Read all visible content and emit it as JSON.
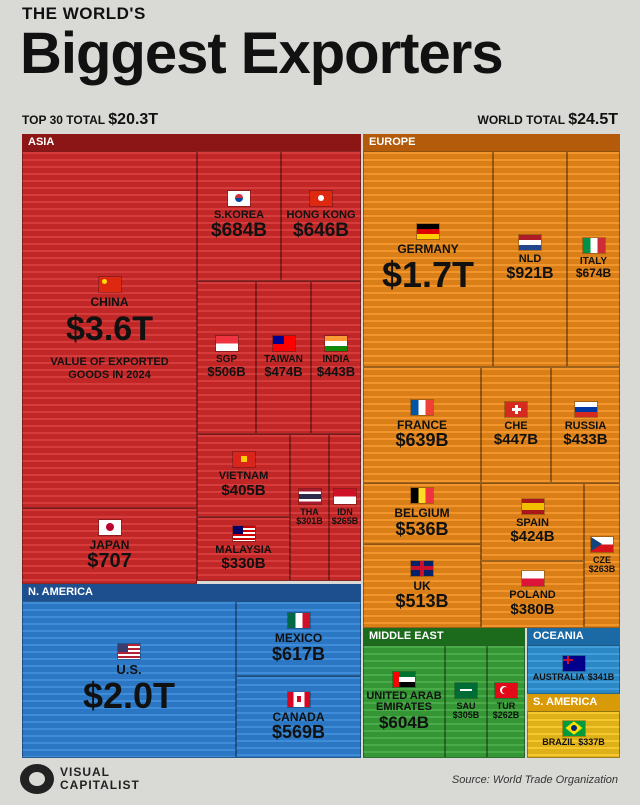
{
  "header": {
    "supertitle": "THE WORLD'S",
    "title": "Biggest Exporters",
    "top30_label": "TOP 30 TOTAL",
    "top30_value": "$20.3T",
    "world_label": "WORLD TOTAL",
    "world_value": "$24.5T"
  },
  "regions": {
    "asia": "ASIA",
    "europe": "EUROPE",
    "namerica": "N. AMERICA",
    "mideast": "MIDDLE EAST",
    "oceania": "OCEANIA",
    "samerica": "S. AMERICA"
  },
  "footer": {
    "logo_line1": "VISUAL",
    "logo_line2": "CAPITALIST",
    "source": "Source: World Trade Organization"
  },
  "colors": {
    "asia": "#d42b2b",
    "europe": "#f08c1a",
    "namerica": "#2f83d6",
    "mideast": "#3aa53a",
    "oceania": "#2f96d8",
    "samerica": "#f5c21c"
  },
  "chart_data": {
    "type": "treemap",
    "title": "THE WORLD'S Biggest Exporters",
    "note": "VALUE OF EXPORTED GOODS IN 2024",
    "unit": "USD",
    "items": [
      {
        "id": "china",
        "region": "asia",
        "name": "CHINA",
        "label": "$3.6T",
        "value": 3600,
        "flag": "china"
      },
      {
        "id": "skorea",
        "region": "asia",
        "name": "S.KOREA",
        "label": "$684B",
        "value": 684,
        "flag": "south-korea"
      },
      {
        "id": "hongkong",
        "region": "asia",
        "name": "HONG KONG",
        "label": "$646B",
        "value": 646,
        "flag": "hong-kong"
      },
      {
        "id": "sgp",
        "region": "asia",
        "name": "SGP",
        "label": "$506B",
        "value": 506,
        "flag": "singapore"
      },
      {
        "id": "taiwan",
        "region": "asia",
        "name": "TAIWAN",
        "label": "$474B",
        "value": 474,
        "flag": "taiwan"
      },
      {
        "id": "india",
        "region": "asia",
        "name": "INDIA",
        "label": "$443B",
        "value": 443,
        "flag": "india"
      },
      {
        "id": "vietnam",
        "region": "asia",
        "name": "VIETNAM",
        "label": "$405B",
        "value": 405,
        "flag": "vietnam"
      },
      {
        "id": "tha",
        "region": "asia",
        "name": "THA",
        "label": "$301B",
        "value": 301,
        "flag": "thailand"
      },
      {
        "id": "idn",
        "region": "asia",
        "name": "IDN",
        "label": "$265B",
        "value": 265,
        "flag": "indonesia"
      },
      {
        "id": "malaysia",
        "region": "asia",
        "name": "MALAYSIA",
        "label": "$330B",
        "value": 330,
        "flag": "malaysia"
      },
      {
        "id": "japan",
        "region": "asia",
        "name": "JAPAN",
        "label": "$707",
        "value": 707,
        "flag": "japan"
      },
      {
        "id": "germany",
        "region": "europe",
        "name": "GERMANY",
        "label": "$1.7T",
        "value": 1700,
        "flag": "germany"
      },
      {
        "id": "nld",
        "region": "europe",
        "name": "NLD",
        "label": "$921B",
        "value": 921,
        "flag": "netherlands"
      },
      {
        "id": "italy",
        "region": "europe",
        "name": "ITALY",
        "label": "$674B",
        "value": 674,
        "flag": "italy"
      },
      {
        "id": "france",
        "region": "europe",
        "name": "FRANCE",
        "label": "$639B",
        "value": 639,
        "flag": "france"
      },
      {
        "id": "che",
        "region": "europe",
        "name": "CHE",
        "label": "$447B",
        "value": 447,
        "flag": "switzerland"
      },
      {
        "id": "russia",
        "region": "europe",
        "name": "RUSSIA",
        "label": "$433B",
        "value": 433,
        "flag": "russia"
      },
      {
        "id": "belgium",
        "region": "europe",
        "name": "BELGIUM",
        "label": "$536B",
        "value": 536,
        "flag": "belgium"
      },
      {
        "id": "spain",
        "region": "europe",
        "name": "SPAIN",
        "label": "$424B",
        "value": 424,
        "flag": "spain"
      },
      {
        "id": "cze",
        "region": "europe",
        "name": "CZE",
        "label": "$263B",
        "value": 263,
        "flag": "czechia"
      },
      {
        "id": "uk",
        "region": "europe",
        "name": "UK",
        "label": "$513B",
        "value": 513,
        "flag": "uk"
      },
      {
        "id": "poland",
        "region": "europe",
        "name": "POLAND",
        "label": "$380B",
        "value": 380,
        "flag": "poland"
      },
      {
        "id": "us",
        "region": "namerica",
        "name": "U.S.",
        "label": "$2.0T",
        "value": 2000,
        "flag": "usa"
      },
      {
        "id": "mexico",
        "region": "namerica",
        "name": "MEXICO",
        "label": "$617B",
        "value": 617,
        "flag": "mexico"
      },
      {
        "id": "canada",
        "region": "namerica",
        "name": "CANADA",
        "label": "$569B",
        "value": 569,
        "flag": "canada"
      },
      {
        "id": "uae",
        "region": "mideast",
        "name": "UNITED ARAB EMIRATES",
        "label": "$604B",
        "value": 604,
        "flag": "uae"
      },
      {
        "id": "sau",
        "region": "mideast",
        "name": "SAU",
        "label": "$305B",
        "value": 305,
        "flag": "saudi-arabia"
      },
      {
        "id": "tur",
        "region": "mideast",
        "name": "TUR",
        "label": "$262B",
        "value": 262,
        "flag": "turkey"
      },
      {
        "id": "australia",
        "region": "oceania",
        "name": "AUSTRALIA",
        "label": "$341B",
        "value": 341,
        "flag": "australia"
      },
      {
        "id": "brazil",
        "region": "samerica",
        "name": "BRAZIL",
        "label": "$337B",
        "value": 337,
        "flag": "brazil"
      }
    ]
  }
}
